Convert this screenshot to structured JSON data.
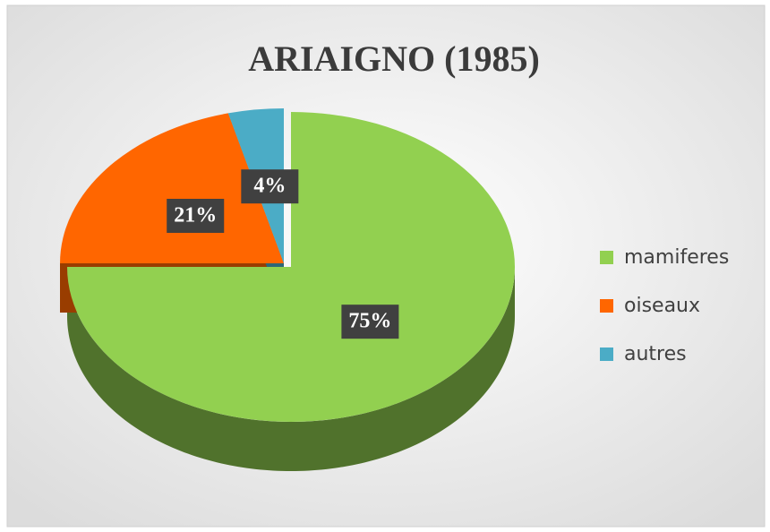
{
  "chart_data": {
    "type": "pie",
    "title": "ARIAIGNO (1985)",
    "categories": [
      "mamiferes",
      "oiseaux",
      "autres"
    ],
    "values": [
      75,
      21,
      4
    ],
    "value_labels": [
      "75%",
      "21%",
      "4%"
    ],
    "colors": [
      "#92d050",
      "#ff6600",
      "#4bacc6"
    ],
    "legend": "right"
  }
}
